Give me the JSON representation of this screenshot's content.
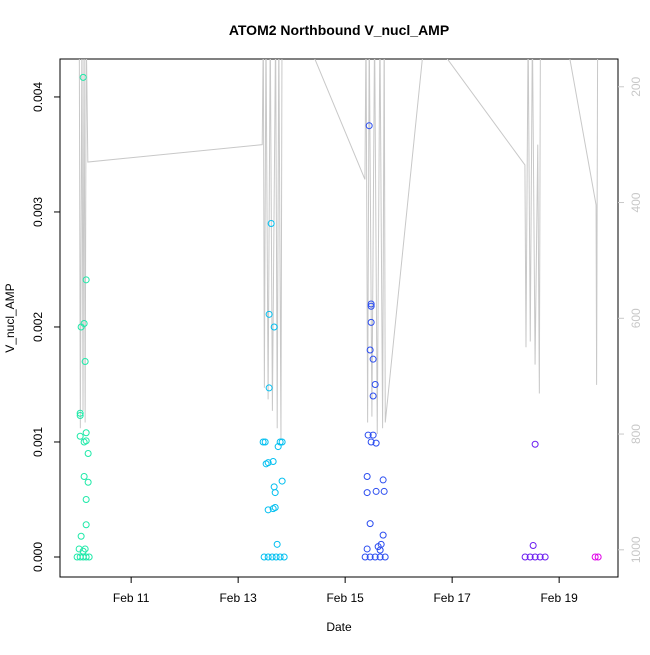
{
  "chart_data": {
    "type": "scatter",
    "title": "ATOM2 Northbound V_nucl_AMP",
    "xlabel": "Date",
    "ylabel": "V_nucl_AMP",
    "xlim": [
      9.67,
      20.1
    ],
    "ylim": [
      -0.000174,
      0.00433
    ],
    "y2lim": [
      1047,
      152
    ],
    "xticks": [
      {
        "value": 11,
        "label": "Feb 11"
      },
      {
        "value": 13,
        "label": "Feb 13"
      },
      {
        "value": 15,
        "label": "Feb 15"
      },
      {
        "value": 17,
        "label": "Feb 17"
      },
      {
        "value": 19,
        "label": "Feb 19"
      }
    ],
    "yticks": [
      {
        "value": 0,
        "label": "0.000"
      },
      {
        "value": 0.001,
        "label": "0.001"
      },
      {
        "value": 0.002,
        "label": "0.002"
      },
      {
        "value": 0.003,
        "label": "0.003"
      },
      {
        "value": 0.004,
        "label": "0.004"
      }
    ],
    "y2ticks": [
      200,
      400,
      600,
      800,
      1000
    ],
    "y2color": "#c8c8c8",
    "series": [
      {
        "type": "line",
        "axis": "y2",
        "color": "#c8c8c8",
        "x": [
          10.03,
          10.05,
          10.08,
          10.1,
          10.12,
          10.14,
          10.16,
          10.19,
          13.45,
          13.47,
          13.49,
          13.52,
          13.56,
          13.6,
          13.64,
          13.7,
          13.73,
          13.76,
          13.8,
          13.82,
          14.2,
          15.37,
          15.39,
          15.42,
          15.45,
          15.5,
          15.55,
          15.6,
          15.65,
          15.7,
          15.73,
          15.75,
          16.5,
          18.36,
          18.38,
          18.42,
          18.46,
          18.5,
          18.55,
          18.6,
          18.63,
          18.65,
          19.1,
          19.69,
          19.7,
          19.72
        ],
        "values": [
          100,
          790,
          100,
          760,
          100,
          780,
          100,
          330,
          300,
          100,
          720,
          100,
          740,
          100,
          760,
          100,
          790,
          100,
          810,
          100,
          100,
          360,
          100,
          780,
          100,
          770,
          100,
          800,
          100,
          790,
          100,
          780,
          100,
          335,
          650,
          100,
          640,
          100,
          680,
          300,
          730,
          100,
          100,
          404,
          715,
          100
        ]
      },
      {
        "type": "scatter",
        "color": "#1de9a8",
        "x": [
          10.103,
          10.159,
          10.121,
          10.065,
          10.14,
          10.047,
          10.047,
          10.159,
          10.047,
          10.121,
          10.159,
          10.196,
          10.121,
          10.196,
          10.159,
          10.159,
          10.065,
          10.028,
          10.14,
          10.103,
          9.99,
          10.047,
          10.103,
          10.159,
          10.215
        ],
        "values": [
          0.00417,
          0.00241,
          0.00203,
          0.002,
          0.0017,
          0.00125,
          0.00123,
          0.00108,
          0.00105,
          0.001,
          0.00101,
          0.0009,
          0.0007,
          0.00065,
          0.0005,
          0.00028,
          0.00018,
          7e-05,
          7e-05,
          5e-05,
          0,
          0,
          0,
          0,
          0
        ]
      },
      {
        "type": "scatter",
        "color": "#00bff0",
        "x": [
          13.617,
          13.579,
          13.673,
          13.579,
          13.467,
          13.505,
          13.785,
          13.822,
          13.748,
          13.654,
          13.561,
          13.523,
          13.822,
          13.673,
          13.692,
          13.692,
          13.654,
          13.561,
          13.729,
          13.486,
          13.561,
          13.636,
          13.71,
          13.785,
          13.86
        ],
        "values": [
          0.0029,
          0.00211,
          0.002,
          0.00147,
          0.001,
          0.001,
          0.001,
          0.001,
          0.00096,
          0.00083,
          0.00082,
          0.00081,
          0.00066,
          0.00061,
          0.00056,
          0.00043,
          0.00042,
          0.00041,
          0.00011,
          0,
          0,
          0,
          0,
          0,
          0
        ]
      },
      {
        "type": "scatter",
        "color": "#2a4cf0",
        "x": [
          15.449,
          15.486,
          15.486,
          15.486,
          15.467,
          15.523,
          15.561,
          15.523,
          15.43,
          15.523,
          15.486,
          15.579,
          15.411,
          15.71,
          15.729,
          15.579,
          15.411,
          15.467,
          15.71,
          15.673,
          15.617,
          15.411,
          15.654,
          15.374,
          15.467,
          15.561,
          15.654,
          15.748
        ],
        "values": [
          0.00375,
          0.0022,
          0.00218,
          0.00204,
          0.0018,
          0.00172,
          0.0015,
          0.0014,
          0.00106,
          0.00106,
          0.001,
          0.00099,
          0.0007,
          0.00067,
          0.00057,
          0.00057,
          0.00056,
          0.00029,
          0.00019,
          0.00011,
          9e-05,
          7e-05,
          6e-05,
          0,
          0,
          0,
          0,
          0
        ]
      },
      {
        "type": "scatter",
        "color": "#6a1cf0",
        "x": [
          18.551,
          18.514,
          18.364,
          18.458,
          18.551,
          18.645,
          18.738
        ],
        "values": [
          0.00098,
          0.0001,
          0,
          0,
          0,
          0,
          0
        ]
      },
      {
        "type": "scatter",
        "color": "#e000e8",
        "x": [
          19.673,
          19.729
        ],
        "values": [
          0,
          0
        ]
      }
    ]
  }
}
